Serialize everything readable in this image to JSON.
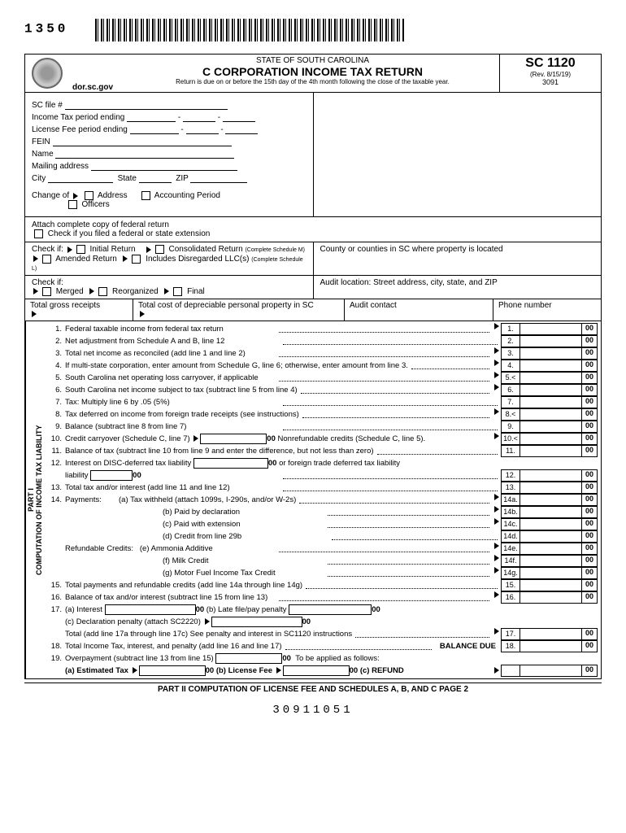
{
  "top_number": "1350",
  "header": {
    "website": "dor.sc.gov",
    "state_line": "STATE OF SOUTH CAROLINA",
    "title": "C CORPORATION INCOME TAX RETURN",
    "subtitle": "Return is due on or before the 15th day of the 4th month following the close of the taxable year.",
    "form_number": "SC 1120",
    "revision": "(Rev. 8/15/19)",
    "code": "3091"
  },
  "fields": {
    "sc_file": "SC file #",
    "income_period": "Income Tax period ending",
    "license_period": "License Fee period ending",
    "fein": "FEIN",
    "name": "Name",
    "mailing": "Mailing address",
    "city": "City",
    "state": "State",
    "zip": "ZIP",
    "change_of": "Change of",
    "address": "Address",
    "officers": "Officers",
    "accounting": "Accounting Period",
    "attach": "Attach complete copy of federal return",
    "check_ext": "Check if you filed a federal or state extension",
    "check_if": "Check if:",
    "initial": "Initial Return",
    "consolidated": "Consolidated Return",
    "complete_m": "(Complete Schedule M)",
    "amended": "Amended Return",
    "disregarded": "Includes Disregarded LLC(s)",
    "complete_l": "(Complete Schedule L)",
    "county_text": "County or counties in SC where property is located",
    "audit_loc": "Audit location: Street address, city, state, and ZIP",
    "merged": "Merged",
    "reorganized": "Reorganized",
    "final": "Final",
    "gross": "Total gross receipts",
    "depreciable": "Total cost of depreciable personal property in SC",
    "audit_contact": "Audit contact",
    "phone": "Phone number"
  },
  "side_label": "PART I\nCOMPUTATION OF INCOME TAX LIABILITY",
  "lines": [
    {
      "n": "1.",
      "t": "Federal taxable income from federal tax return",
      "ln": "1."
    },
    {
      "n": "2.",
      "t": "Net adjustment from Schedule A and B, line 12",
      "ln": "2."
    },
    {
      "n": "3.",
      "t": "Total net income as reconciled (add line 1 and line 2)",
      "ln": "3."
    },
    {
      "n": "4.",
      "t": "If multi-state corporation, enter amount from Schedule G, line 6; otherwise, enter amount from line 3.",
      "ln": "4."
    },
    {
      "n": "5.",
      "t": "South Carolina net operating loss carryover, if applicable",
      "ln": "5."
    },
    {
      "n": "6.",
      "t": "South Carolina net income subject to tax (subtract line 5 from line 4)",
      "ln": "6."
    },
    {
      "n": "7.",
      "t": "Tax: Multiply line 6 by .05 (5%)",
      "ln": "7."
    },
    {
      "n": "8.",
      "t": "Tax deferred on income from foreign trade receipts (see instructions)",
      "ln": "8."
    },
    {
      "n": "9.",
      "t": "Balance (subtract line 8 from line 7)",
      "ln": "9."
    },
    {
      "n": "10.",
      "t": "Credit carryover (Schedule C, line 7)",
      "ln": "10."
    },
    {
      "n": "11.",
      "t": "Balance of tax (subtract line 10 from line 9 and enter the difference, but not less than zero)",
      "ln": "11."
    },
    {
      "n": "12.",
      "t": "Interest on DISC-deferred tax liability",
      "ln": "12."
    },
    {
      "n": "13.",
      "t": "Total tax and/or interest (add line 11 and line 12)",
      "ln": "13."
    },
    {
      "n": "14.",
      "t": "Payments:",
      "ln": "14a."
    },
    {
      "n": "15.",
      "t": "Total payments and refundable credits (add line 14a through line 14g)",
      "ln": "15."
    },
    {
      "n": "16.",
      "t": "Balance of tax and/or interest (subtract line 15 from line 13)",
      "ln": "16."
    },
    {
      "n": "17.",
      "t": "(a) Interest",
      "ln": "17."
    },
    {
      "n": "18.",
      "t": "Total Income Tax, interest, and penalty  (add line 16 and line 17)",
      "ln": "18."
    },
    {
      "n": "19.",
      "t": "Overpayment (subtract line 13 from line 15)",
      "ln": ""
    }
  ],
  "line10_extra": "Nonrefundable credits (Schedule C, line 5).",
  "line12_extra": "or foreign trade deferred tax liability",
  "payments": {
    "a": "(a) Tax withheld (attach 1099s, I-290s, and/or W-2s)",
    "b": "(b) Paid by declaration",
    "c": "(c) Paid with extension",
    "d": "(d) Credit from line 29b",
    "rc": "Refundable Credits:",
    "e": "(e) Ammonia Additive",
    "f": "(f)  Milk Credit",
    "g": "(g) Motor Fuel Income Tax Credit"
  },
  "line17": {
    "b": "(b) Late file/pay penalty",
    "c": "(c) Declaration penalty   (attach SC2220)",
    "total": "Total (add line 17a through line 17c) See penalty and interest in SC1120 instructions"
  },
  "line18_bal": "BALANCE DUE",
  "line19": {
    "applied": "To be applied as follows:",
    "a": "(a) Estimated Tax",
    "b": "(b) License Fee",
    "c": "(c) REFUND"
  },
  "part2": "PART II COMPUTATION OF LICENSE FEE AND SCHEDULES A, B, AND C PAGE 2",
  "bottom_code": "30911051",
  "zz": "00"
}
